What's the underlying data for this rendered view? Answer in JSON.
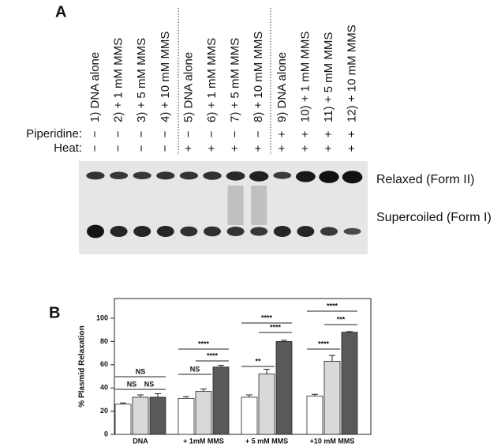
{
  "panel_a": {
    "label": "A",
    "row_labels": {
      "piperidine": "Piperidine:",
      "heat": "Heat:"
    },
    "lanes": [
      {
        "label": "1) DNA alone",
        "piperidine": "−",
        "heat": "−"
      },
      {
        "label": "2) + 1 mM MMS",
        "piperidine": "−",
        "heat": "−"
      },
      {
        "label": "3) + 5 mM MMS",
        "piperidine": "−",
        "heat": "−"
      },
      {
        "label": "4) + 10 mM MMS",
        "piperidine": "−",
        "heat": "−"
      },
      {
        "label": "5) DNA alone",
        "piperidine": "−",
        "heat": "+"
      },
      {
        "label": "6) + 1 mM MMS",
        "piperidine": "−",
        "heat": "+"
      },
      {
        "label": "7) + 5 mM MMS",
        "piperidine": "−",
        "heat": "+"
      },
      {
        "label": "8) + 10 mM MMS",
        "piperidine": "−",
        "heat": "+"
      },
      {
        "label": "9) DNA alone",
        "piperidine": "+",
        "heat": "+"
      },
      {
        "label": "10) + 1 mM MMS",
        "piperidine": "+",
        "heat": "+"
      },
      {
        "label": "11) + 5 mM MMS",
        "piperidine": "+",
        "heat": "+"
      },
      {
        "label": "12) + 10 mM MMS",
        "piperidine": "+",
        "heat": "+"
      }
    ],
    "bands": {
      "relaxed": "Relaxed (Form II)",
      "supercoiled": "Supercoiled (Form I)"
    }
  },
  "chart_data": {
    "type": "bar",
    "label": "B",
    "ylabel": "% Plasmid Relaxation",
    "categories": [
      "DNA",
      "+ 1mM MMS",
      "+ 5 mM MMS",
      "+10 mM MMS"
    ],
    "series": [
      {
        "color": "#ffffff",
        "values": [
          26,
          31,
          32,
          33
        ],
        "errors": [
          1,
          1.5,
          2,
          1.5
        ]
      },
      {
        "color": "#d9d9d9",
        "values": [
          32,
          37,
          52,
          63
        ],
        "errors": [
          2,
          2,
          4,
          5
        ]
      },
      {
        "color": "#595959",
        "values": [
          32,
          58,
          80,
          88
        ],
        "errors": [
          3,
          1.5,
          1,
          0.5
        ]
      }
    ],
    "ylim": [
      0,
      117
    ],
    "yticks": [
      0,
      20,
      40,
      60,
      80,
      100
    ],
    "annotations": [
      "NS",
      "NS",
      "NS",
      "NS",
      "****",
      "****",
      "**",
      "****",
      "****",
      "****",
      "***",
      "****"
    ]
  }
}
